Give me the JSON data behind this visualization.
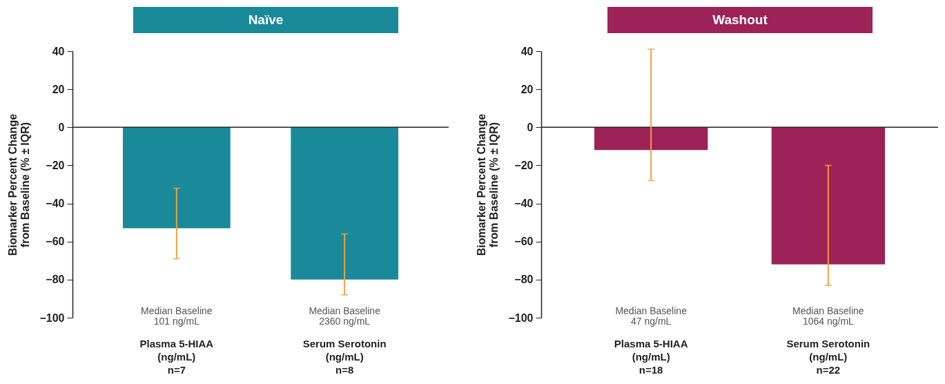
{
  "chart_data": [
    {
      "type": "bar",
      "title": "Naïve",
      "ylabel": "Biomarker Percent Change\nfrom Baseline (% ± IQR)",
      "categories": [
        "Plasma 5-HIAA\n(ng/mL)\nn=7",
        "Serum Serotonin\n(ng/mL)\nn=8"
      ],
      "values": [
        -53,
        -80
      ],
      "color": "#1a8a9a",
      "errors": [
        [
          -69,
          -32
        ],
        [
          -88,
          -56
        ]
      ],
      "ylim": [
        -100,
        40
      ],
      "yticks": [
        -100,
        -80,
        -60,
        -40,
        -20,
        0,
        20,
        40
      ],
      "grid": false,
      "ref_lines": [
        {
          "axis": "y",
          "value": 0
        }
      ],
      "annotations": [
        "Median Baseline\n101 ng/mL",
        "Median Baseline\n2360 ng/mL"
      ]
    },
    {
      "type": "bar",
      "title": "Washout",
      "ylabel": "Biomarker Percent Change\nfrom Baseline (% ± IQR)",
      "categories": [
        "Plasma 5-HIAA\n(ng/mL)\nn=18",
        "Serum Serotonin\n(ng/mL)\nn=22"
      ],
      "values": [
        -12,
        -72
      ],
      "color": "#9c2257",
      "errors": [
        [
          -28,
          41
        ],
        [
          -83,
          -20
        ]
      ],
      "ylim": [
        -100,
        40
      ],
      "yticks": [
        -100,
        -80,
        -60,
        -40,
        -20,
        0,
        20,
        40
      ],
      "grid": false,
      "ref_lines": [
        {
          "axis": "y",
          "value": 0
        }
      ],
      "annotations": [
        "Median Baseline\n47 ng/mL",
        "Median Baseline\n1064 ng/mL"
      ]
    }
  ]
}
